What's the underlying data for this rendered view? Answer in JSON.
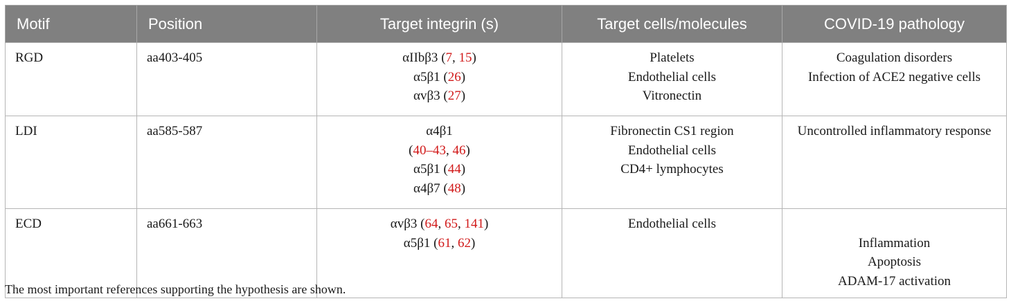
{
  "headers": {
    "motif": "Motif",
    "position": "Position",
    "integrin": "Target integrin (s)",
    "cells": "Target cells/molecules",
    "pathology": "COVID-19 pathology"
  },
  "rows": [
    {
      "motif": "RGD",
      "position": "aa403-405",
      "integrins": [
        {
          "name": "αIIbβ3",
          "open": " (",
          "refs": [
            "7",
            "15"
          ],
          "seps": [
            ", "
          ],
          "close": ")"
        },
        {
          "name": "α5β1",
          "open": " (",
          "refs": [
            "26"
          ],
          "seps": [],
          "close": ")"
        },
        {
          "name": "αvβ3",
          "open": " (",
          "refs": [
            "27"
          ],
          "seps": [],
          "close": ")"
        }
      ],
      "cells": [
        "Platelets",
        "Endothelial cells",
        "Vitronectin"
      ],
      "pathology": [
        "Coagulation disorders",
        "Infection of ACE2 negative cells"
      ]
    },
    {
      "motif": "LDI",
      "position": "aa585-587",
      "integrins": [
        {
          "name": "α4β1",
          "open": "",
          "refs": [],
          "seps": [],
          "close": ""
        },
        {
          "name": "",
          "open": "(",
          "refs": [
            "40–43",
            "46"
          ],
          "seps": [
            ", "
          ],
          "close": ")"
        },
        {
          "name": "α5β1",
          "open": " (",
          "refs": [
            "44"
          ],
          "seps": [],
          "close": ")"
        },
        {
          "name": "α4β7",
          "open": " (",
          "refs": [
            "48"
          ],
          "seps": [],
          "close": ")"
        }
      ],
      "cells": [
        "Fibronectin CS1 region",
        "Endothelial cells",
        "CD4+ lymphocytes"
      ],
      "pathology": [
        "Uncontrolled inflammatory response"
      ]
    },
    {
      "motif": "ECD",
      "position": "aa661-663",
      "integrins": [
        {
          "name": "αvβ3",
          "open": " (",
          "refs": [
            "64",
            "65",
            "141"
          ],
          "seps": [
            ", ",
            ", "
          ],
          "close": ")"
        },
        {
          "name": "α5β1",
          "open": " (",
          "refs": [
            "61",
            "62"
          ],
          "seps": [
            ", "
          ],
          "close": ")"
        }
      ],
      "cells": [
        "Endothelial cells"
      ],
      "pathology": [
        "",
        "Inflammation",
        "Apoptosis",
        "ADAM-17 activation"
      ]
    }
  ],
  "footnote": "The most important references supporting the hypothesis are shown.",
  "colors": {
    "header_bg": "#808080",
    "header_text": "#ffffff",
    "reference_link": "#d11a1a",
    "grid": "#b5b5b5"
  }
}
